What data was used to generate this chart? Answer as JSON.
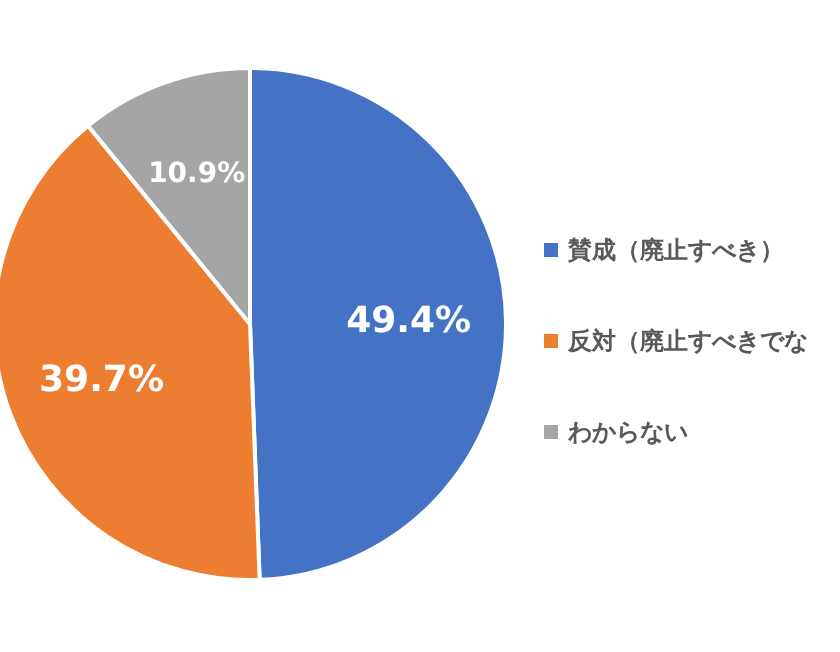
{
  "chart_data": {
    "type": "pie",
    "categories": [
      "賛成（廃止すべき）",
      "反対（廃止すべきでな",
      "わからない"
    ],
    "values": [
      49.4,
      39.7,
      10.9
    ],
    "colors": [
      "#4472c4",
      "#ed7d31",
      "#a5a5a5"
    ],
    "value_labels": [
      "49.4%",
      "39.7%",
      "10.9%"
    ],
    "legend": "right"
  }
}
